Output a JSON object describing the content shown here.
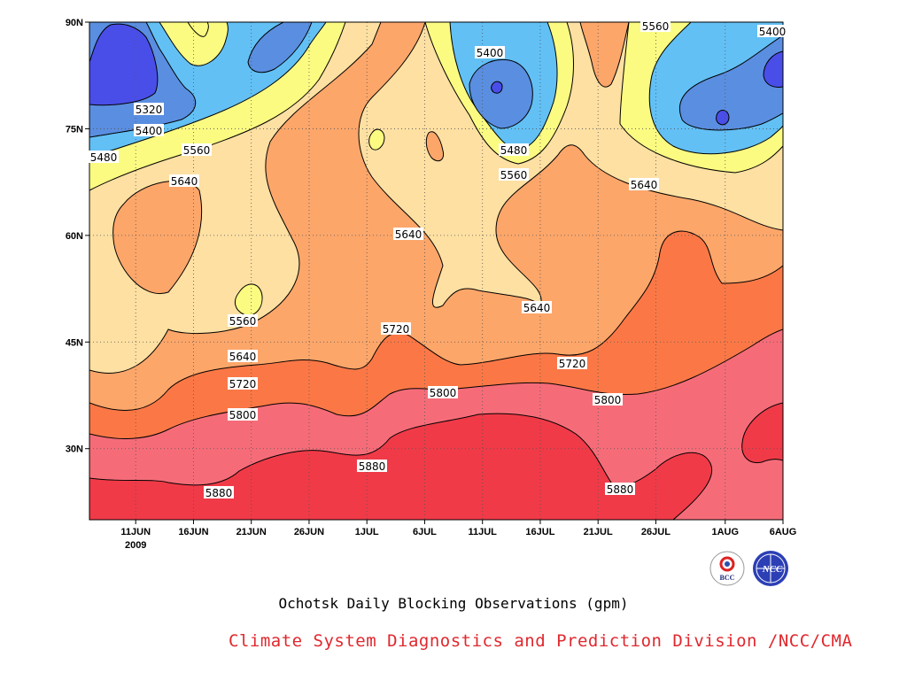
{
  "title": "Ochotsk Daily Blocking Observations (gpm)",
  "footer": "Climate System Diagnostics and Prediction Division /NCC/CMA",
  "logos": {
    "left": "BCC",
    "right": "NCC"
  },
  "chart_data": {
    "type": "contour",
    "title": "Ochotsk Daily Blocking Observations (gpm)",
    "xlabel": "",
    "ylabel": "",
    "year_label": "2009",
    "x_ticks": [
      "11JUN",
      "16JUN",
      "21JUN",
      "26JUN",
      "1JUL",
      "6JUL",
      "11JUL",
      "16JUL",
      "21JUL",
      "26JUL",
      "1AUG",
      "6AUG"
    ],
    "y_ticks": [
      "30N",
      "45N",
      "60N",
      "75N",
      "90N"
    ],
    "xlim": [
      "2009-06-07",
      "2009-08-06"
    ],
    "ylim": [
      20,
      90
    ],
    "grid": true,
    "contour_levels": [
      5320,
      5400,
      5480,
      5560,
      5640,
      5720,
      5800,
      5880
    ],
    "fill_colors": {
      "below_5320": "#4a4ee8",
      "5320-5400": "#5a8ee0",
      "5400-5480": "#62c0f5",
      "5480-5560": "#fbfb82",
      "5560-5640": "#fde0a2",
      "5640-5720": "#fca66a",
      "5720-5800": "#fb7846",
      "5800-5880": "#f56c78",
      "above_5880": "#f03a48"
    },
    "contour_labels": [
      "5320",
      "5400",
      "5480",
      "5560",
      "5640",
      "5560",
      "5640",
      "5720",
      "5800",
      "5880",
      "5640",
      "5720",
      "5800",
      "5880",
      "5400",
      "5480",
      "5560",
      "5640",
      "5720",
      "5800",
      "5880",
      "5560",
      "5400",
      "5640"
    ]
  }
}
